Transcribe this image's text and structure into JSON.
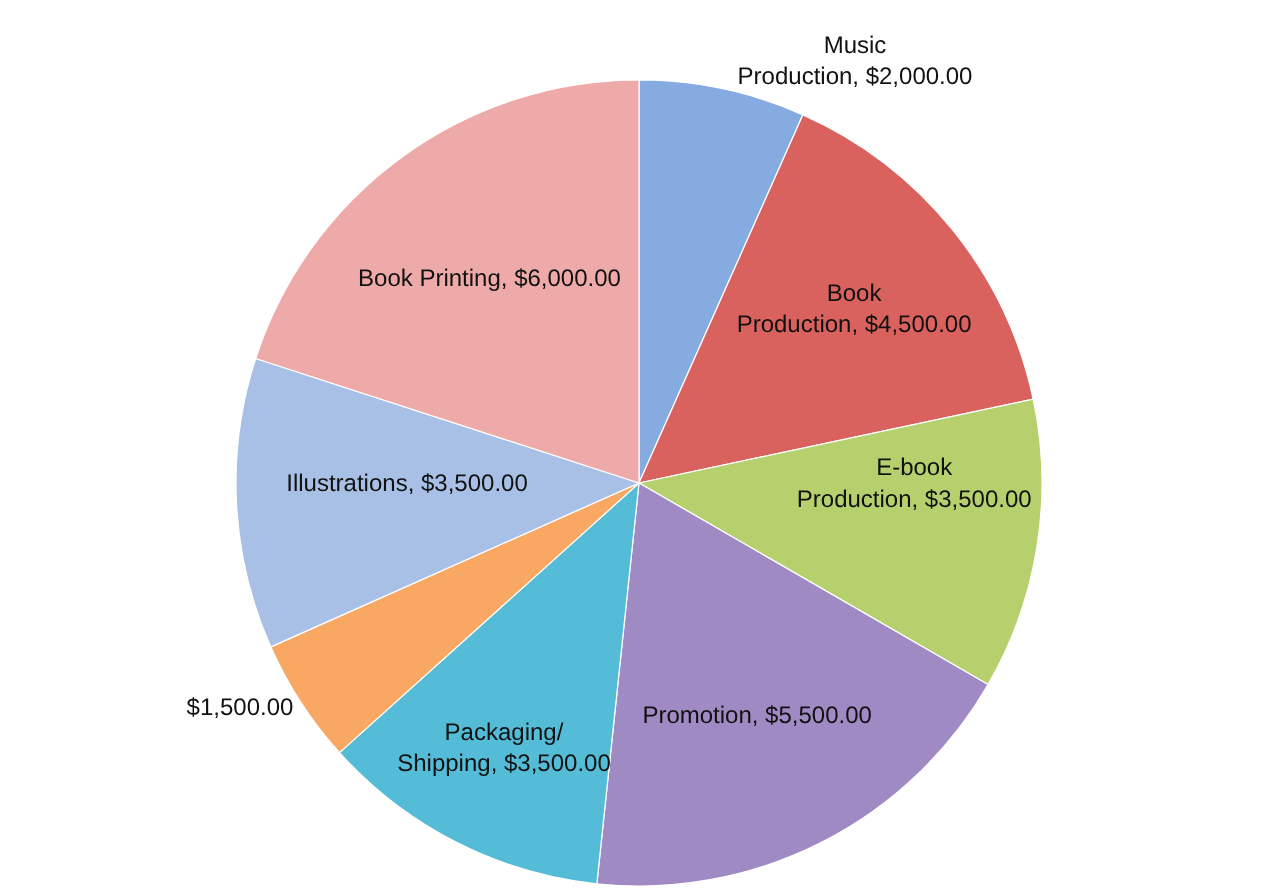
{
  "chart_data": {
    "type": "pie",
    "categories": [
      "Music Production",
      "Book Production",
      "E-book Production",
      "Promotion",
      "Packaging/ Shipping",
      null,
      "Illustrations",
      "Book Printing"
    ],
    "values": [
      2000,
      4500,
      3500,
      5500,
      3500,
      1500,
      3500,
      6000
    ],
    "value_labels": [
      "$2,000.00",
      "$4,500.00",
      "$3,500.00",
      "$5,500.00",
      "$3,500.00",
      "$1,500.00",
      "$3,500.00",
      "$6,000.00"
    ],
    "colors": [
      "#86abe0",
      "#d9625e",
      "#b5d06c",
      "#a08ac4",
      "#55bcd8",
      "#f8a862",
      "#a9c0e6",
      "#eeaaa8"
    ],
    "data_labels": true
  }
}
